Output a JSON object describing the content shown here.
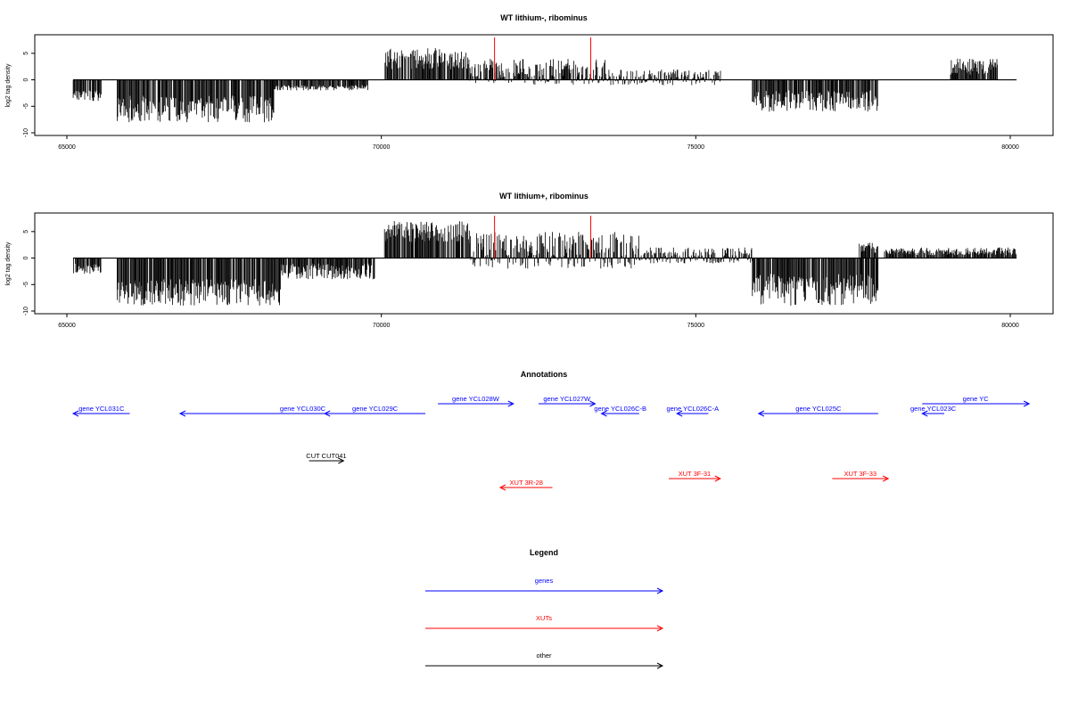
{
  "chart_data": [
    {
      "type": "bar",
      "title": "WT lithium-, ribominus",
      "xlabel": "",
      "ylabel": "log2 tag density",
      "xlim": [
        65000,
        80100
      ],
      "ylim": [
        -10,
        8
      ],
      "x_ticks": [
        65000,
        70000,
        75000,
        80000
      ],
      "y_ticks": [
        -10,
        -5,
        0,
        5
      ],
      "baseline": [
        65100,
        80100
      ],
      "markers": [
        71800,
        73330
      ],
      "marker_color": "#ff0000",
      "bar_color": "#000000",
      "coverage_segments": [
        {
          "x": [
            65100,
            65550
          ],
          "y": [
            -2,
            -4
          ]
        },
        {
          "x": [
            65800,
            68300
          ],
          "y": [
            -3,
            -8
          ]
        },
        {
          "x": [
            68300,
            69800
          ],
          "y": [
            -1,
            -2
          ]
        },
        {
          "x": [
            70050,
            71400
          ],
          "y": [
            2,
            6
          ]
        },
        {
          "x": [
            71400,
            73600
          ],
          "y": [
            -1,
            4
          ]
        },
        {
          "x": [
            73600,
            75400
          ],
          "y": [
            -1,
            2
          ]
        },
        {
          "x": [
            75900,
            77900
          ],
          "y": [
            -2,
            -6
          ]
        },
        {
          "x": [
            79050,
            79800
          ],
          "y": [
            1,
            4
          ]
        }
      ]
    },
    {
      "type": "bar",
      "title": "WT lithium+, ribominus",
      "xlabel": "",
      "ylabel": "log2 tag density",
      "xlim": [
        65000,
        80100
      ],
      "ylim": [
        -10,
        8
      ],
      "x_ticks": [
        65000,
        70000,
        75000,
        80000
      ],
      "y_ticks": [
        -10,
        -5,
        0,
        5
      ],
      "baseline": [
        65100,
        80100
      ],
      "markers": [
        71800,
        73330
      ],
      "marker_color": "#ff0000",
      "bar_color": "#000000",
      "coverage_segments": [
        {
          "x": [
            65100,
            65550
          ],
          "y": [
            -1,
            -3
          ]
        },
        {
          "x": [
            65800,
            68400
          ],
          "y": [
            -4,
            -9
          ]
        },
        {
          "x": [
            68400,
            69900
          ],
          "y": [
            -1,
            -4
          ]
        },
        {
          "x": [
            70050,
            71400
          ],
          "y": [
            3,
            7
          ]
        },
        {
          "x": [
            71400,
            74100
          ],
          "y": [
            -2,
            5
          ]
        },
        {
          "x": [
            74100,
            75900
          ],
          "y": [
            -1,
            2
          ]
        },
        {
          "x": [
            75900,
            77900
          ],
          "y": [
            -3,
            -9
          ]
        },
        {
          "x": [
            77600,
            77900
          ],
          "y": [
            1,
            3
          ]
        },
        {
          "x": [
            78000,
            80100
          ],
          "y": [
            0.5,
            2
          ]
        }
      ]
    }
  ],
  "annotations": {
    "title": "Annotations",
    "items": [
      {
        "label": "gene YCL031C",
        "start": 65100,
        "end": 66000,
        "dir": "left",
        "row": 1,
        "color": "#0000ff"
      },
      {
        "label": "gene YCL030C",
        "start": 66800,
        "end": 70700,
        "dir": "left",
        "row": 1,
        "color": "#0000ff"
      },
      {
        "label": "gene YCL029C",
        "start": 69100,
        "end": 70700,
        "dir": "left",
        "row": 1,
        "color": "#0000ff"
      },
      {
        "label": "gene YCL028W",
        "start": 70900,
        "end": 72100,
        "dir": "right",
        "row": 0,
        "color": "#0000ff"
      },
      {
        "label": "gene YCL027W",
        "start": 72500,
        "end": 73400,
        "dir": "right",
        "row": 0,
        "color": "#0000ff"
      },
      {
        "label": "gene YCL026C-B",
        "start": 73500,
        "end": 74100,
        "dir": "left",
        "row": 1,
        "color": "#0000ff"
      },
      {
        "label": "gene YCL026C-A",
        "start": 74700,
        "end": 75200,
        "dir": "left",
        "row": 1,
        "color": "#0000ff"
      },
      {
        "label": "gene YCL025C",
        "start": 76000,
        "end": 77900,
        "dir": "left",
        "row": 1,
        "color": "#0000ff"
      },
      {
        "label": "gene YCL023C",
        "start": 78600,
        "end": 78950,
        "dir": "left",
        "row": 1,
        "color": "#0000ff"
      },
      {
        "label": "gene YC",
        "start": 78600,
        "end": 80300,
        "dir": "right",
        "row": 0,
        "color": "#0000ff"
      },
      {
        "label": "CUT CUT041",
        "start": 68850,
        "end": 69400,
        "dir": "right",
        "row": 2,
        "color": "#000000"
      },
      {
        "label": "XUT 3R-28",
        "start": 71890,
        "end": 72720,
        "dir": "left",
        "row": 4,
        "color": "#ff0000"
      },
      {
        "label": "XUT 3F-31",
        "start": 74570,
        "end": 75390,
        "dir": "right",
        "row": 3,
        "color": "#ff0000"
      },
      {
        "label": "XUT 3F-33",
        "start": 77170,
        "end": 78060,
        "dir": "right",
        "row": 3,
        "color": "#ff0000"
      }
    ]
  },
  "legend": {
    "title": "Legend",
    "entries": [
      {
        "label": "genes",
        "color": "#0000ff"
      },
      {
        "label": "XUTs",
        "color": "#ff0000"
      },
      {
        "label": "other",
        "color": "#000000"
      }
    ]
  }
}
